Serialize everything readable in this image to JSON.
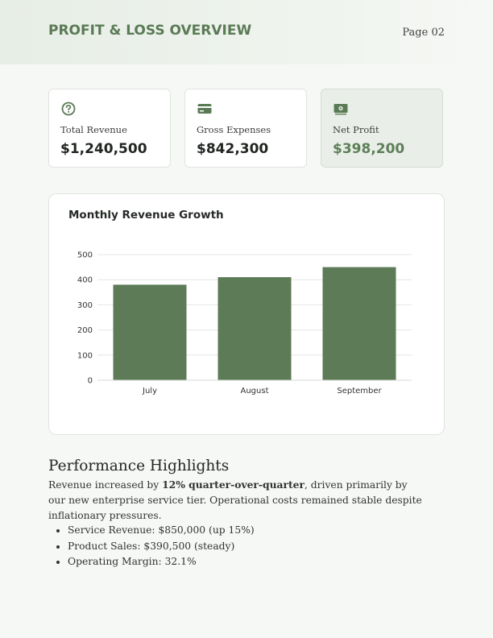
{
  "header": {
    "title": "PROFIT & LOSS OVERVIEW",
    "page": "Page 02"
  },
  "kpis": [
    {
      "label": "Total Revenue",
      "value": "$1,240,500",
      "icon": "help-circle-icon"
    },
    {
      "label": "Gross Expenses",
      "value": "$842,300",
      "icon": "credit-card-icon"
    },
    {
      "label": "Net Profit",
      "value": "$398,200",
      "icon": "banknote-icon"
    }
  ],
  "colors": {
    "accent": "#5a7a55",
    "bar": "#5c7b56",
    "background": "#f6f8f5"
  },
  "chart_data": {
    "type": "bar",
    "title": "Monthly Revenue Growth",
    "categories": [
      "July",
      "August",
      "September"
    ],
    "values": [
      380,
      410,
      450
    ],
    "ylim": [
      0,
      500
    ],
    "yticks": [
      0,
      100,
      200,
      300,
      400,
      500
    ],
    "xlabel": "",
    "ylabel": "",
    "grid": true
  },
  "highlights": {
    "title": "Performance Highlights",
    "text_before": "Revenue increased by ",
    "text_bold": "12% quarter-over-quarter",
    "text_after": ", driven primarily by our new enterprise service tier. Operational costs remained stable despite inflationary pressures.",
    "bullets": [
      "Service Revenue: $850,000 (up 15%)",
      "Product Sales: $390,500 (steady)",
      "Operating Margin: 32.1%"
    ]
  }
}
